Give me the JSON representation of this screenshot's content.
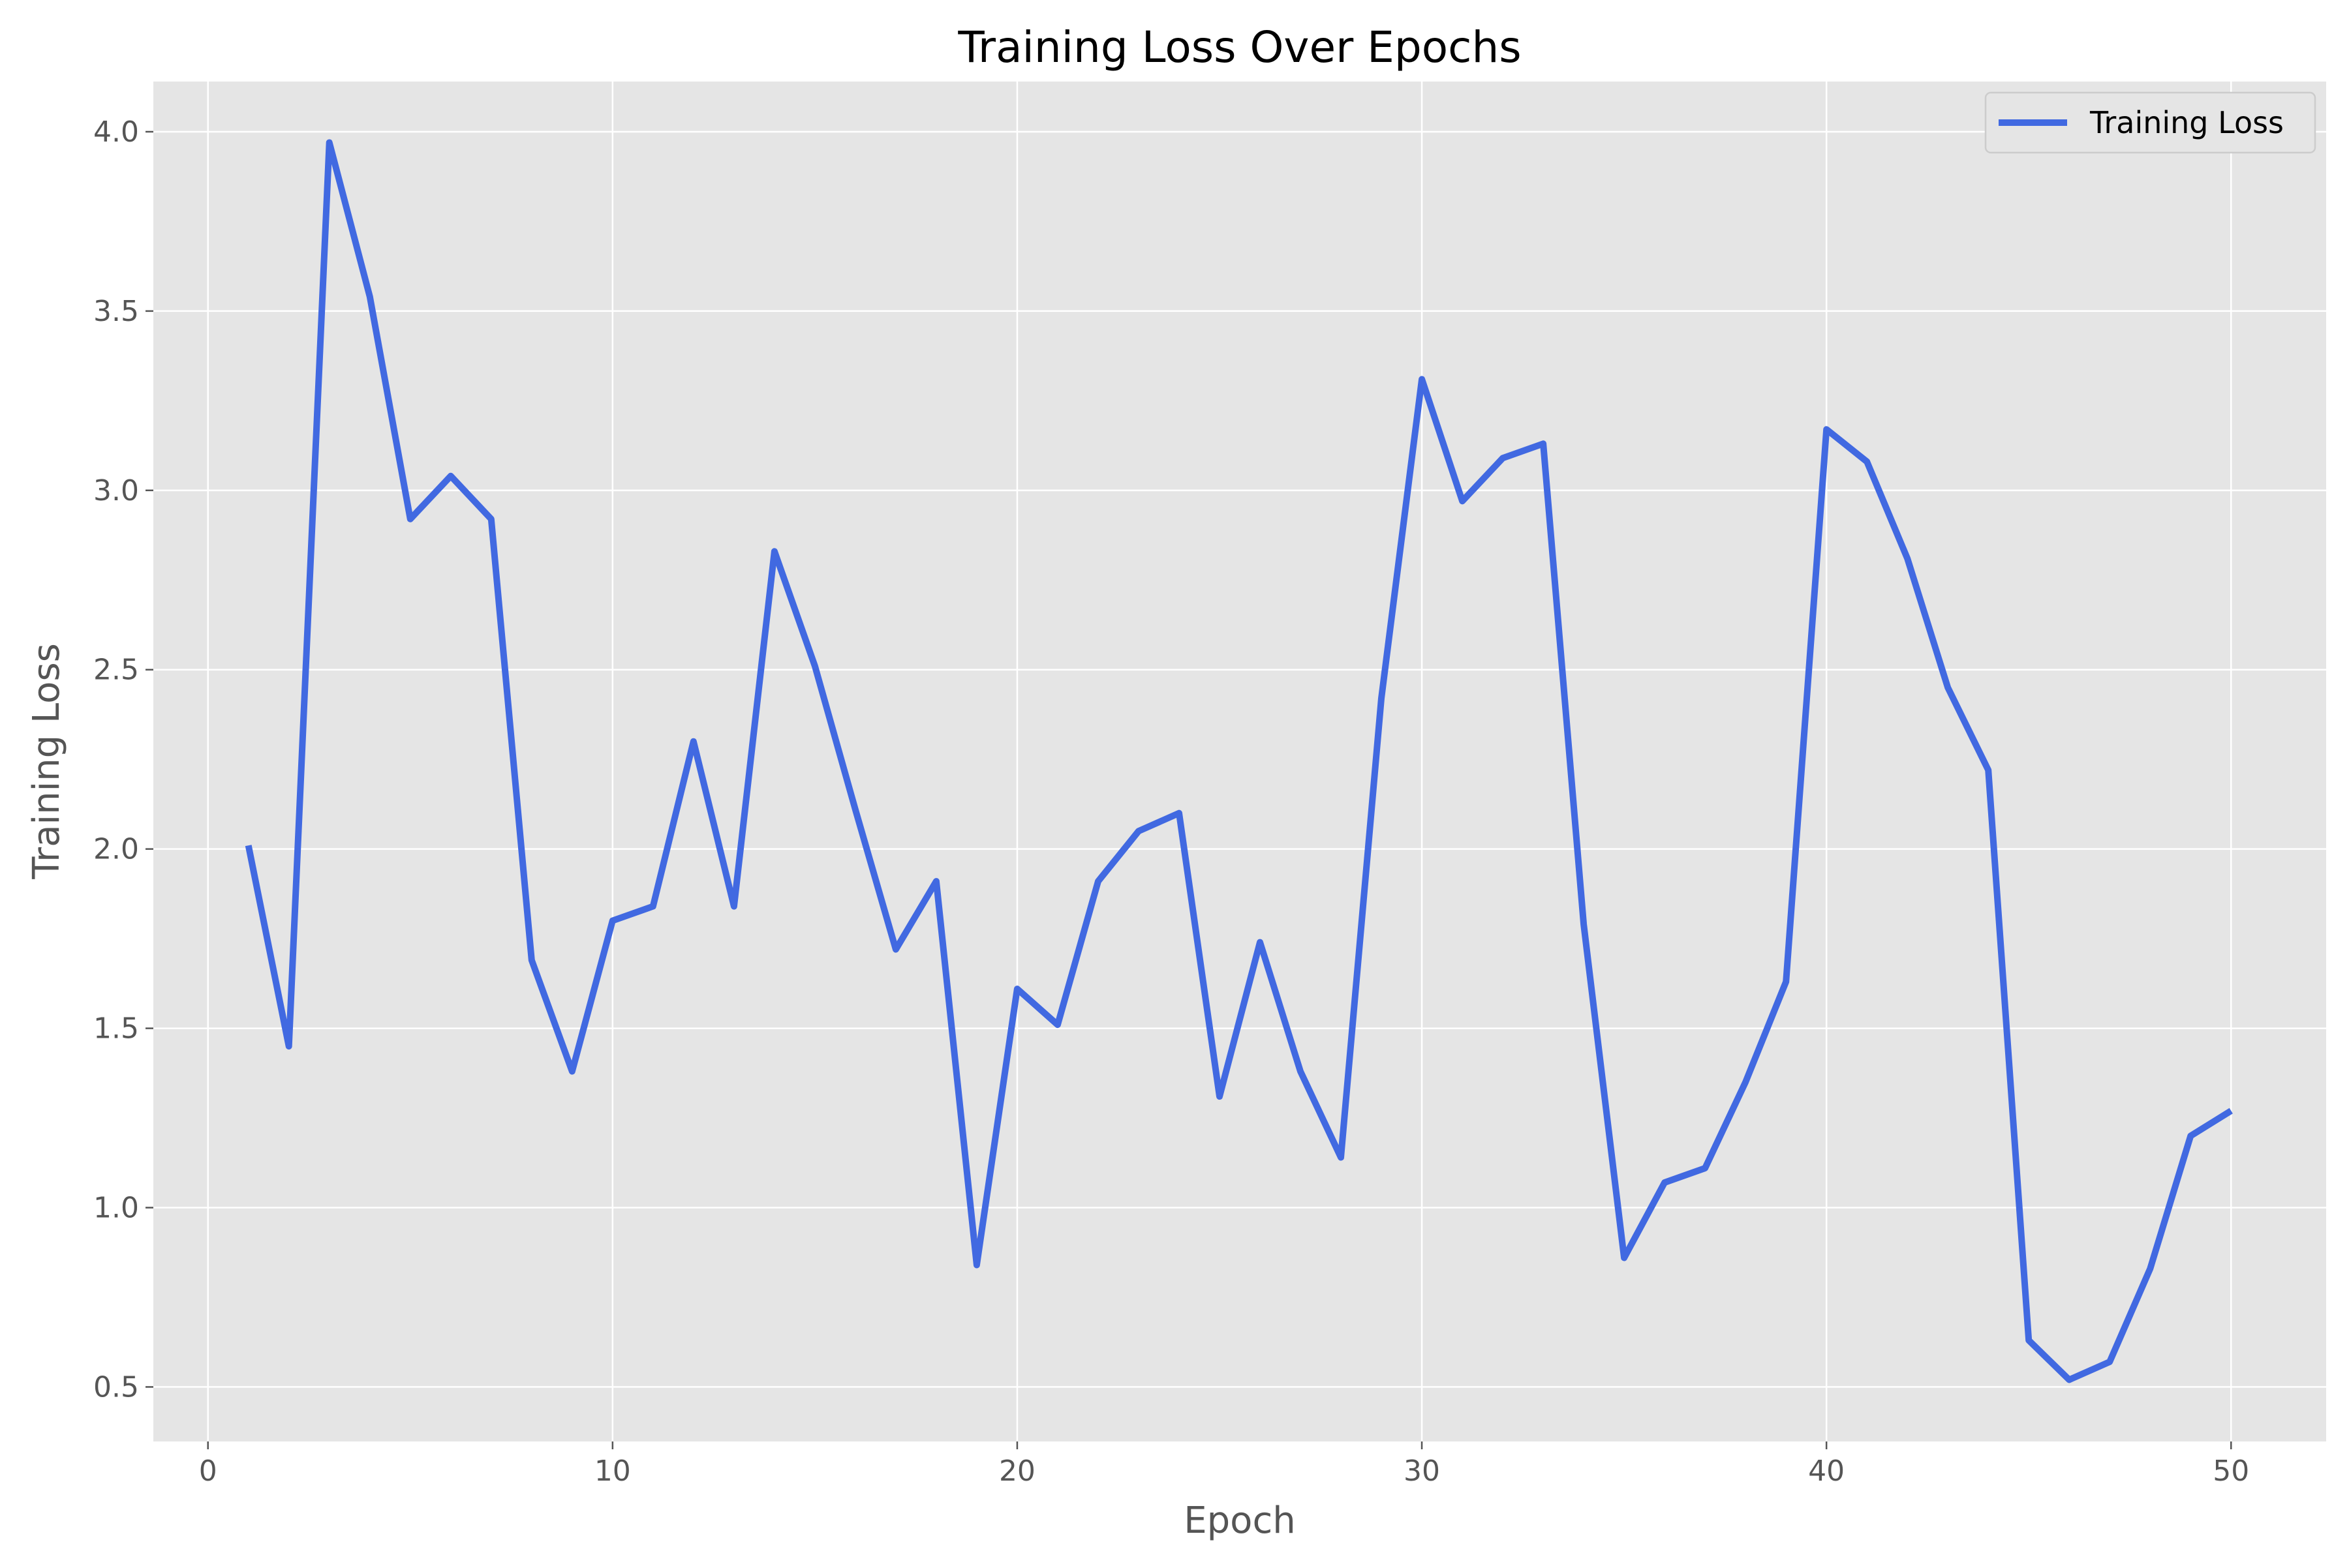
{
  "chart_data": {
    "type": "line",
    "title": "Training Loss Over Epochs",
    "xlabel": "Epoch",
    "ylabel": "Training Loss",
    "xlim": [
      -1.35,
      52.35
    ],
    "ylim": [
      0.348,
      4.14
    ],
    "xticks": [
      0,
      10,
      20,
      30,
      40,
      50
    ],
    "xtick_labels": [
      "0",
      "10",
      "20",
      "30",
      "40",
      "50"
    ],
    "yticks": [
      0.5,
      1.0,
      1.5,
      2.0,
      2.5,
      3.0,
      3.5,
      4.0
    ],
    "ytick_labels": [
      "0.5",
      "1.0",
      "1.5",
      "2.0",
      "2.5",
      "3.0",
      "3.5",
      "4.0"
    ],
    "grid": true,
    "legend_position": "top-right",
    "colors": {
      "plot_background": "#e5e5e5",
      "grid": "#ffffff",
      "text": "#555555"
    },
    "series": [
      {
        "name": "Training Loss",
        "color": "#4169e1",
        "x": [
          1,
          2,
          3,
          4,
          5,
          6,
          7,
          8,
          9,
          10,
          11,
          12,
          13,
          14,
          15,
          16,
          17,
          18,
          19,
          20,
          21,
          22,
          23,
          24,
          25,
          26,
          27,
          28,
          29,
          30,
          31,
          32,
          33,
          34,
          35,
          36,
          37,
          38,
          39,
          40,
          41,
          42,
          43,
          44,
          45,
          46,
          47,
          48,
          49,
          50
        ],
        "y": [
          2.01,
          1.45,
          3.97,
          3.54,
          2.92,
          3.04,
          2.92,
          1.69,
          1.38,
          1.8,
          1.84,
          2.3,
          1.84,
          2.83,
          2.51,
          2.11,
          1.72,
          1.91,
          0.84,
          1.61,
          1.51,
          1.91,
          2.05,
          2.1,
          1.31,
          1.74,
          1.38,
          1.14,
          2.42,
          3.31,
          2.97,
          3.09,
          3.13,
          1.79,
          0.86,
          1.07,
          1.11,
          1.35,
          1.63,
          3.17,
          3.08,
          2.81,
          2.45,
          2.22,
          0.63,
          0.52,
          0.57,
          0.83,
          1.2,
          1.27
        ]
      }
    ]
  }
}
